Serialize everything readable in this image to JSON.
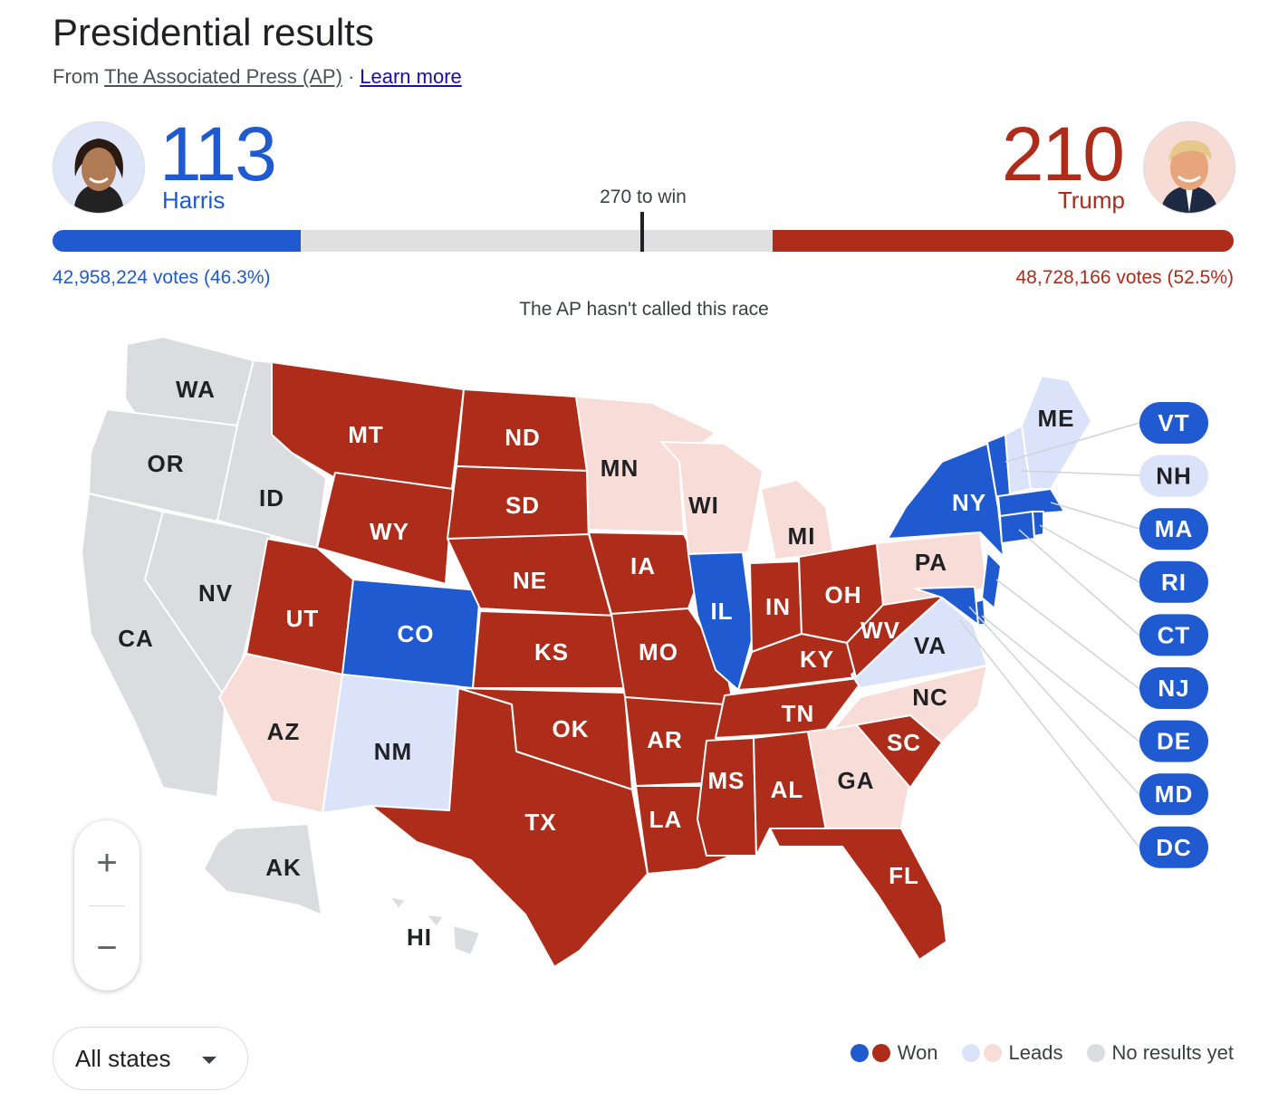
{
  "header": {
    "title": "Presidential results",
    "from_label": "From",
    "source": "The Associated Press (AP)",
    "separator": "·",
    "learn_more": "Learn more"
  },
  "harris": {
    "name": "Harris",
    "electoral_votes": "113",
    "votes_text": "42,958,224 votes (46.3%)",
    "bar_fraction": 0.21,
    "color": "#1f5ad0"
  },
  "trump": {
    "name": "Trump",
    "electoral_votes": "210",
    "votes_text": "48,728,166 votes (52.5%)",
    "bar_fraction": 0.39,
    "color": "#ad2c1a"
  },
  "to_win_label": "270 to win",
  "race_status": "The AP hasn't called this race",
  "colors": {
    "dem_won": "#1f5ad0",
    "rep_won": "#ad2c1a",
    "dem_leads": "#dbe3fa",
    "rep_leads": "#f8dcd7",
    "no_results": "#dadce0"
  },
  "map": {
    "states": [
      {
        "abbr": "WA",
        "status": "no_results"
      },
      {
        "abbr": "OR",
        "status": "no_results"
      },
      {
        "abbr": "CA",
        "status": "no_results"
      },
      {
        "abbr": "NV",
        "status": "no_results"
      },
      {
        "abbr": "ID",
        "status": "no_results"
      },
      {
        "abbr": "MT",
        "status": "rep_won"
      },
      {
        "abbr": "WY",
        "status": "rep_won"
      },
      {
        "abbr": "UT",
        "status": "rep_won"
      },
      {
        "abbr": "AZ",
        "status": "rep_leads"
      },
      {
        "abbr": "CO",
        "status": "dem_won"
      },
      {
        "abbr": "NM",
        "status": "dem_leads"
      },
      {
        "abbr": "ND",
        "status": "rep_won"
      },
      {
        "abbr": "SD",
        "status": "rep_won"
      },
      {
        "abbr": "NE",
        "status": "rep_won"
      },
      {
        "abbr": "KS",
        "status": "rep_won"
      },
      {
        "abbr": "OK",
        "status": "rep_won"
      },
      {
        "abbr": "TX",
        "status": "rep_won"
      },
      {
        "abbr": "MN",
        "status": "rep_leads"
      },
      {
        "abbr": "IA",
        "status": "rep_won"
      },
      {
        "abbr": "MO",
        "status": "rep_won"
      },
      {
        "abbr": "AR",
        "status": "rep_won"
      },
      {
        "abbr": "LA",
        "status": "rep_won"
      },
      {
        "abbr": "WI",
        "status": "rep_leads"
      },
      {
        "abbr": "IL",
        "status": "dem_won"
      },
      {
        "abbr": "MI",
        "status": "rep_leads"
      },
      {
        "abbr": "IN",
        "status": "rep_won"
      },
      {
        "abbr": "OH",
        "status": "rep_won"
      },
      {
        "abbr": "KY",
        "status": "rep_won"
      },
      {
        "abbr": "TN",
        "status": "rep_won"
      },
      {
        "abbr": "MS",
        "status": "rep_won"
      },
      {
        "abbr": "AL",
        "status": "rep_won"
      },
      {
        "abbr": "GA",
        "status": "rep_leads"
      },
      {
        "abbr": "FL",
        "status": "rep_won"
      },
      {
        "abbr": "SC",
        "status": "rep_won"
      },
      {
        "abbr": "NC",
        "status": "rep_leads"
      },
      {
        "abbr": "VA",
        "status": "dem_leads"
      },
      {
        "abbr": "WV",
        "status": "rep_won"
      },
      {
        "abbr": "PA",
        "status": "rep_leads"
      },
      {
        "abbr": "NY",
        "status": "dem_won"
      },
      {
        "abbr": "ME",
        "status": "dem_leads"
      },
      {
        "abbr": "AK",
        "status": "no_results"
      },
      {
        "abbr": "HI",
        "status": "no_results"
      }
    ],
    "small_states": [
      {
        "abbr": "VT",
        "status": "dem_won"
      },
      {
        "abbr": "NH",
        "status": "dem_leads"
      },
      {
        "abbr": "MA",
        "status": "dem_won"
      },
      {
        "abbr": "RI",
        "status": "dem_won"
      },
      {
        "abbr": "CT",
        "status": "dem_won"
      },
      {
        "abbr": "NJ",
        "status": "dem_won"
      },
      {
        "abbr": "DE",
        "status": "dem_won"
      },
      {
        "abbr": "MD",
        "status": "dem_won"
      },
      {
        "abbr": "DC",
        "status": "dem_won"
      }
    ]
  },
  "zoom": {
    "in_label": "+",
    "out_label": "−"
  },
  "state_filter": {
    "selected": "All states"
  },
  "legend": {
    "won": "Won",
    "leads": "Leads",
    "no_results": "No results yet"
  }
}
